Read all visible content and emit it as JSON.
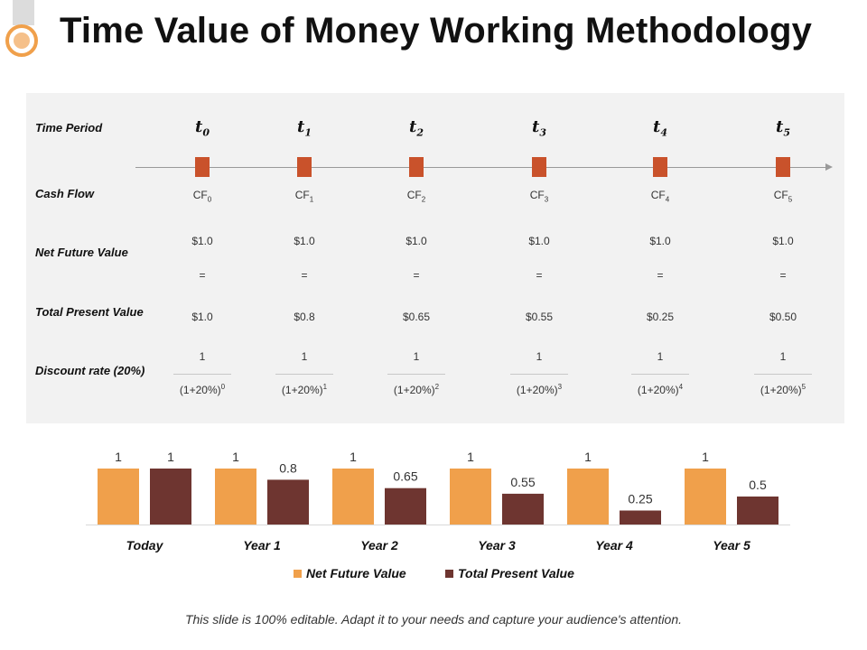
{
  "header": {
    "title": "Time Value of Money Working Methodology"
  },
  "table": {
    "row_labels": {
      "time_period": "Time Period",
      "cash_flow": "Cash Flow",
      "net_future_value": "Net Future Value",
      "total_present_value": "Total Present Value",
      "discount_rate": "Discount rate (20%)"
    },
    "columns": [
      {
        "t": "t",
        "sub": "0",
        "cf": "CF",
        "cf_sub": "0",
        "nfv": "$1.0",
        "eq": "=",
        "tpv": "$1.0",
        "num": "1",
        "denom": "(1+20%)",
        "exp": "0"
      },
      {
        "t": "t",
        "sub": "1",
        "cf": "CF",
        "cf_sub": "1",
        "nfv": "$1.0",
        "eq": "=",
        "tpv": "$0.8",
        "num": "1",
        "denom": "(1+20%)",
        "exp": "1"
      },
      {
        "t": "t",
        "sub": "2",
        "cf": "CF",
        "cf_sub": "2",
        "nfv": "$1.0",
        "eq": "=",
        "tpv": "$0.65",
        "num": "1",
        "denom": "(1+20%)",
        "exp": "2"
      },
      {
        "t": "t",
        "sub": "3",
        "cf": "CF",
        "cf_sub": "3",
        "nfv": "$1.0",
        "eq": "=",
        "tpv": "$0.55",
        "num": "1",
        "denom": "(1+20%)",
        "exp": "3"
      },
      {
        "t": "t",
        "sub": "4",
        "cf": "CF",
        "cf_sub": "4",
        "nfv": "$1.0",
        "eq": "=",
        "tpv": "$0.25",
        "num": "1",
        "denom": "(1+20%)",
        "exp": "4"
      },
      {
        "t": "t",
        "sub": "5",
        "cf": "CF",
        "cf_sub": "5",
        "nfv": "$1.0",
        "eq": "=",
        "tpv": "$0.50",
        "num": "1",
        "denom": "(1+20%)",
        "exp": "5"
      }
    ]
  },
  "chart_data": {
    "type": "bar",
    "categories": [
      "Today",
      "Year 1",
      "Year 2",
      "Year 3",
      "Year 4",
      "Year 5"
    ],
    "series": [
      {
        "name": "Net Future Value",
        "values": [
          1,
          1,
          1,
          1,
          1,
          1
        ],
        "labels": [
          "1",
          "1",
          "1",
          "1",
          "1",
          "1"
        ],
        "color": "#f0a04b"
      },
      {
        "name": "Total Present Value",
        "values": [
          1,
          0.8,
          0.65,
          0.55,
          0.25,
          0.5
        ],
        "labels": [
          "1",
          "0.8",
          "0.65",
          "0.55",
          "0.25",
          "0.5"
        ],
        "color": "#6e3530"
      }
    ],
    "ylim": [
      0,
      1
    ],
    "grid": false,
    "legend": "bottom",
    "title": "",
    "xlabel": "",
    "ylabel": ""
  },
  "colors": {
    "marker": "#c9522b",
    "accent": "#f0a04b"
  },
  "footer": {
    "text": "This slide is 100% editable. Adapt it to your needs and capture your audience's attention."
  }
}
